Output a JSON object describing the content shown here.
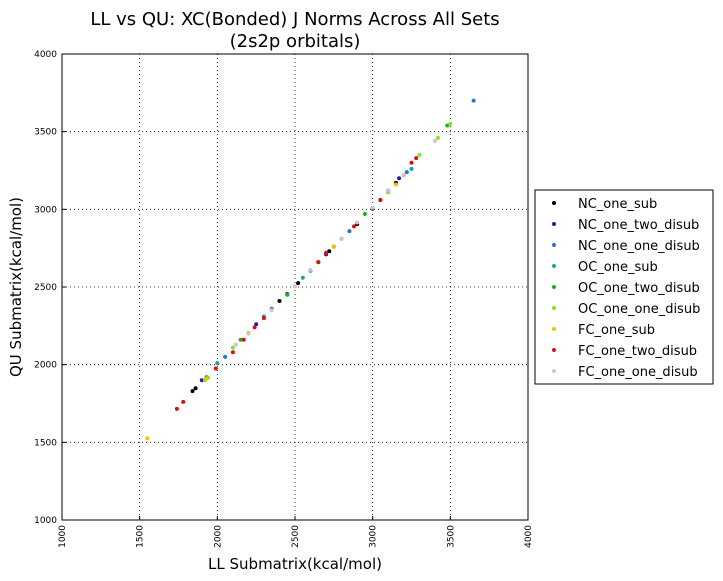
{
  "chart_data": {
    "type": "scatter",
    "title": "LL vs QU: XC(Bonded) J Norms Across All Sets",
    "subtitle": "(2s2p orbitals)",
    "xlabel": "LL Submatrix(kcal/mol)",
    "ylabel": "QU Submatrix(kcal/mol)",
    "xlim": [
      1000,
      4000
    ],
    "ylim": [
      1000,
      4000
    ],
    "xticks": [
      "1000",
      "1500",
      "2000",
      "2500",
      "3000",
      "3500",
      "4000"
    ],
    "yticks": [
      "1000",
      "1500",
      "2000",
      "2500",
      "3000",
      "3500",
      "4000"
    ],
    "grid": true,
    "legend_position": "right",
    "series": [
      {
        "name": "NC_one_sub",
        "color": "#000000",
        "points": [
          [
            1840,
            1830
          ],
          [
            1860,
            1848
          ],
          [
            2400,
            2410
          ],
          [
            2520,
            2525
          ],
          [
            2650,
            2660
          ],
          [
            2720,
            2730
          ],
          [
            2900,
            2905
          ],
          [
            3050,
            3060
          ],
          [
            3150,
            3170
          ]
        ]
      },
      {
        "name": "NC_one_two_disub",
        "color": "#3b0fa8",
        "points": [
          [
            1900,
            1900
          ],
          [
            2250,
            2260
          ],
          [
            2450,
            2455
          ],
          [
            2700,
            2710
          ],
          [
            3000,
            3005
          ],
          [
            3100,
            3120
          ],
          [
            3170,
            3200
          ]
        ]
      },
      {
        "name": "NC_one_one_disub",
        "color": "#1e78d2",
        "points": [
          [
            2050,
            2050
          ],
          [
            2350,
            2360
          ],
          [
            2600,
            2605
          ],
          [
            2850,
            2860
          ],
          [
            3100,
            3110
          ],
          [
            3220,
            3240
          ],
          [
            3650,
            3700
          ]
        ]
      },
      {
        "name": "OC_one_sub",
        "color": "#12a5a0",
        "points": [
          [
            2000,
            2010
          ],
          [
            2300,
            2310
          ],
          [
            2550,
            2560
          ],
          [
            2800,
            2810
          ],
          [
            3050,
            3060
          ],
          [
            3250,
            3260
          ]
        ]
      },
      {
        "name": "OC_one_two_disub",
        "color": "#16b416",
        "points": [
          [
            1930,
            1920
          ],
          [
            2150,
            2160
          ],
          [
            2450,
            2450
          ],
          [
            2750,
            2760
          ],
          [
            2950,
            2970
          ],
          [
            3200,
            3220
          ],
          [
            3480,
            3540
          ]
        ]
      },
      {
        "name": "OC_one_one_disub",
        "color": "#7fe61e",
        "points": [
          [
            1920,
            1900
          ],
          [
            1940,
            1915
          ],
          [
            2100,
            2110
          ],
          [
            2650,
            2660
          ],
          [
            3100,
            3110
          ],
          [
            3300,
            3350
          ],
          [
            3420,
            3460
          ],
          [
            3500,
            3550
          ]
        ]
      },
      {
        "name": "FC_one_sub",
        "color": "#f5be00",
        "points": [
          [
            1550,
            1525
          ],
          [
            1930,
            1910
          ],
          [
            2200,
            2205
          ],
          [
            2750,
            2760
          ],
          [
            3150,
            3160
          ]
        ]
      },
      {
        "name": "FC_one_two_disub",
        "color": "#dc0f0f",
        "points": [
          [
            1740,
            1715
          ],
          [
            1780,
            1760
          ],
          [
            1990,
            1975
          ],
          [
            2100,
            2080
          ],
          [
            2170,
            2160
          ],
          [
            2240,
            2240
          ],
          [
            2300,
            2300
          ],
          [
            2650,
            2660
          ],
          [
            2700,
            2720
          ],
          [
            2880,
            2890
          ],
          [
            3050,
            3060
          ],
          [
            3250,
            3300
          ],
          [
            3280,
            3330
          ]
        ]
      },
      {
        "name": "FC_one_one_disub",
        "color": "#c8c8c8",
        "points": [
          [
            2120,
            2130
          ],
          [
            2200,
            2200
          ],
          [
            2350,
            2350
          ],
          [
            2500,
            2505
          ],
          [
            2600,
            2610
          ],
          [
            2800,
            2810
          ],
          [
            2900,
            2915
          ],
          [
            3000,
            3010
          ],
          [
            3100,
            3120
          ],
          [
            3200,
            3220
          ],
          [
            3400,
            3440
          ]
        ]
      }
    ]
  }
}
